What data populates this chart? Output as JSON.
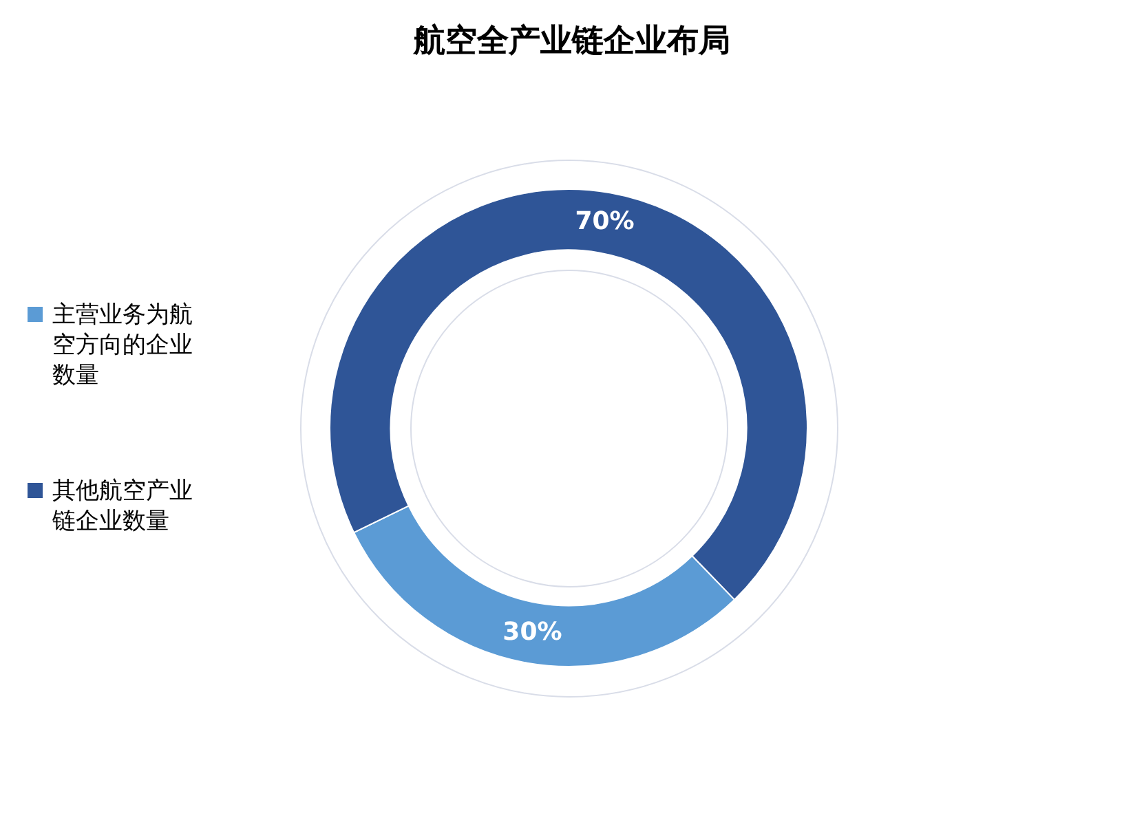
{
  "chart_data": {
    "type": "donut",
    "title": "航空全产业链企业布局",
    "categories": [
      "主营业务为航空方向的企业数量",
      "其他航空产业链企业数量"
    ],
    "values": [
      30,
      70
    ],
    "colors": [
      "#5b9bd5",
      "#2f5597"
    ],
    "value_labels": [
      "30%",
      "70%"
    ],
    "legend": "left"
  }
}
